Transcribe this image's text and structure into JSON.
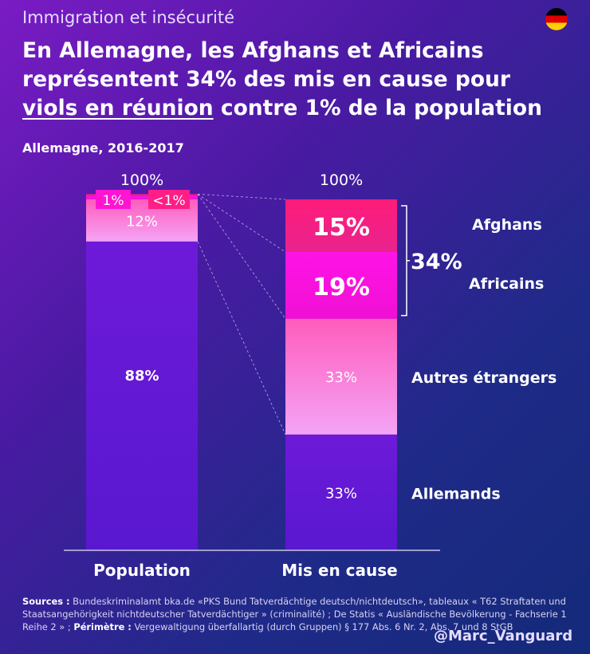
{
  "header": {
    "kicker": "Immigration et insécurité",
    "headline_part1": "En Allemagne, les Afghans et Africains représentent 34% des mis en cause pour ",
    "headline_underline": "viols en réunion",
    "headline_part2": " contre 1% de la population",
    "subtitle": "Allemagne, 2016-2017",
    "flag": "germany-flag"
  },
  "chart_data": {
    "type": "bar",
    "stacked": true,
    "categories": [
      "Population",
      "Mis en cause"
    ],
    "totals": [
      "100%",
      "100%"
    ],
    "series": [
      {
        "name": "Allemands",
        "values": [
          88,
          33
        ],
        "labels": [
          "88%",
          "33%"
        ],
        "color": "#6a1ad6"
      },
      {
        "name": "Autres étrangers",
        "values": [
          12,
          33
        ],
        "labels": [
          "12%",
          "33%"
        ],
        "color": "#f58af0"
      },
      {
        "name": "Africains",
        "values": [
          1,
          19
        ],
        "labels": [
          "1%",
          "19%"
        ],
        "color": "#ff10d8"
      },
      {
        "name": "Afghans",
        "values": [
          0.5,
          15
        ],
        "labels": [
          "<1%",
          "15%"
        ],
        "color": "#ff1e86"
      }
    ],
    "group_annotation": {
      "label": "34%",
      "series": [
        "Afghans",
        "Africains"
      ]
    },
    "ylim": [
      0,
      100
    ]
  },
  "footer": {
    "sources_label": "Sources :",
    "sources_text": " Bundeskriminalamt bka.de «PKS Bund Tatverdächtige deutsch/nichtdeutsch», tableaux « T62 Straftaten und Staatsangehörigkeit nichtdeutscher Tatverdächtiger » (criminalité) ; De Statis « Ausländische Bevölkerung - Fachserie 1 Reihe 2 » ; ",
    "perimeter_label": "Périmètre :",
    "perimeter_text": " Vergewaltigung überfallartig (durch Gruppen) § 177 Abs. 6 Nr. 2, Abs. 7 und 8 StGB",
    "handle": "@Marc_Vanguard"
  }
}
